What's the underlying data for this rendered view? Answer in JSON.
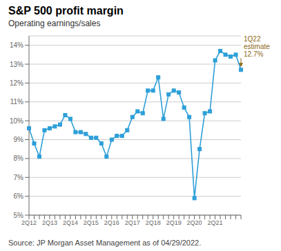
{
  "chart_data": {
    "type": "line",
    "title": "S&P 500 profit margin",
    "subtitle": "Operating earnings/sales",
    "source": "Source: JP Morgan Asset Management as of 04/29/2022.",
    "categories": [
      "2Q12",
      null,
      null,
      null,
      "2Q13",
      null,
      null,
      null,
      "2Q14",
      null,
      null,
      null,
      "2Q15",
      null,
      null,
      null,
      "2Q16",
      null,
      null,
      null,
      "2Q17",
      null,
      null,
      null,
      "2Q18",
      null,
      null,
      null,
      "2Q19",
      null,
      null,
      null,
      "2Q20",
      null,
      null,
      null,
      "2Q21",
      null,
      null,
      null,
      null,
      null
    ],
    "values": [
      9.6,
      8.8,
      8.1,
      9.5,
      9.6,
      9.7,
      9.8,
      10.3,
      10.1,
      9.4,
      9.4,
      9.3,
      9.1,
      9.1,
      8.8,
      8.1,
      9.0,
      9.2,
      9.2,
      9.5,
      10.2,
      10.5,
      10.4,
      11.6,
      11.6,
      12.3,
      10.1,
      11.4,
      11.6,
      11.5,
      10.7,
      10.2,
      5.9,
      8.5,
      10.4,
      10.5,
      13.2,
      13.7,
      13.5,
      13.4,
      13.5,
      12.7
    ],
    "color": "#2E9FD8",
    "marker": "square",
    "ylim": [
      5.0,
      14.5
    ],
    "yticks": [
      {
        "value": 5,
        "label": "5%"
      },
      {
        "value": 6,
        "label": "6%"
      },
      {
        "value": 7,
        "label": "7%"
      },
      {
        "value": 8,
        "label": "8%"
      },
      {
        "value": 9,
        "label": "9%"
      },
      {
        "value": 10,
        "label": "10%"
      },
      {
        "value": 11,
        "label": "11%"
      },
      {
        "value": 12,
        "label": "12%"
      },
      {
        "value": 13,
        "label": "13%"
      },
      {
        "value": 14,
        "label": "14%"
      }
    ],
    "grid": true,
    "annotations": [
      {
        "text": "1Q22\nestimate\n12.7%",
        "x": 41,
        "y": 12.7,
        "color": "#8B6914"
      }
    ]
  }
}
